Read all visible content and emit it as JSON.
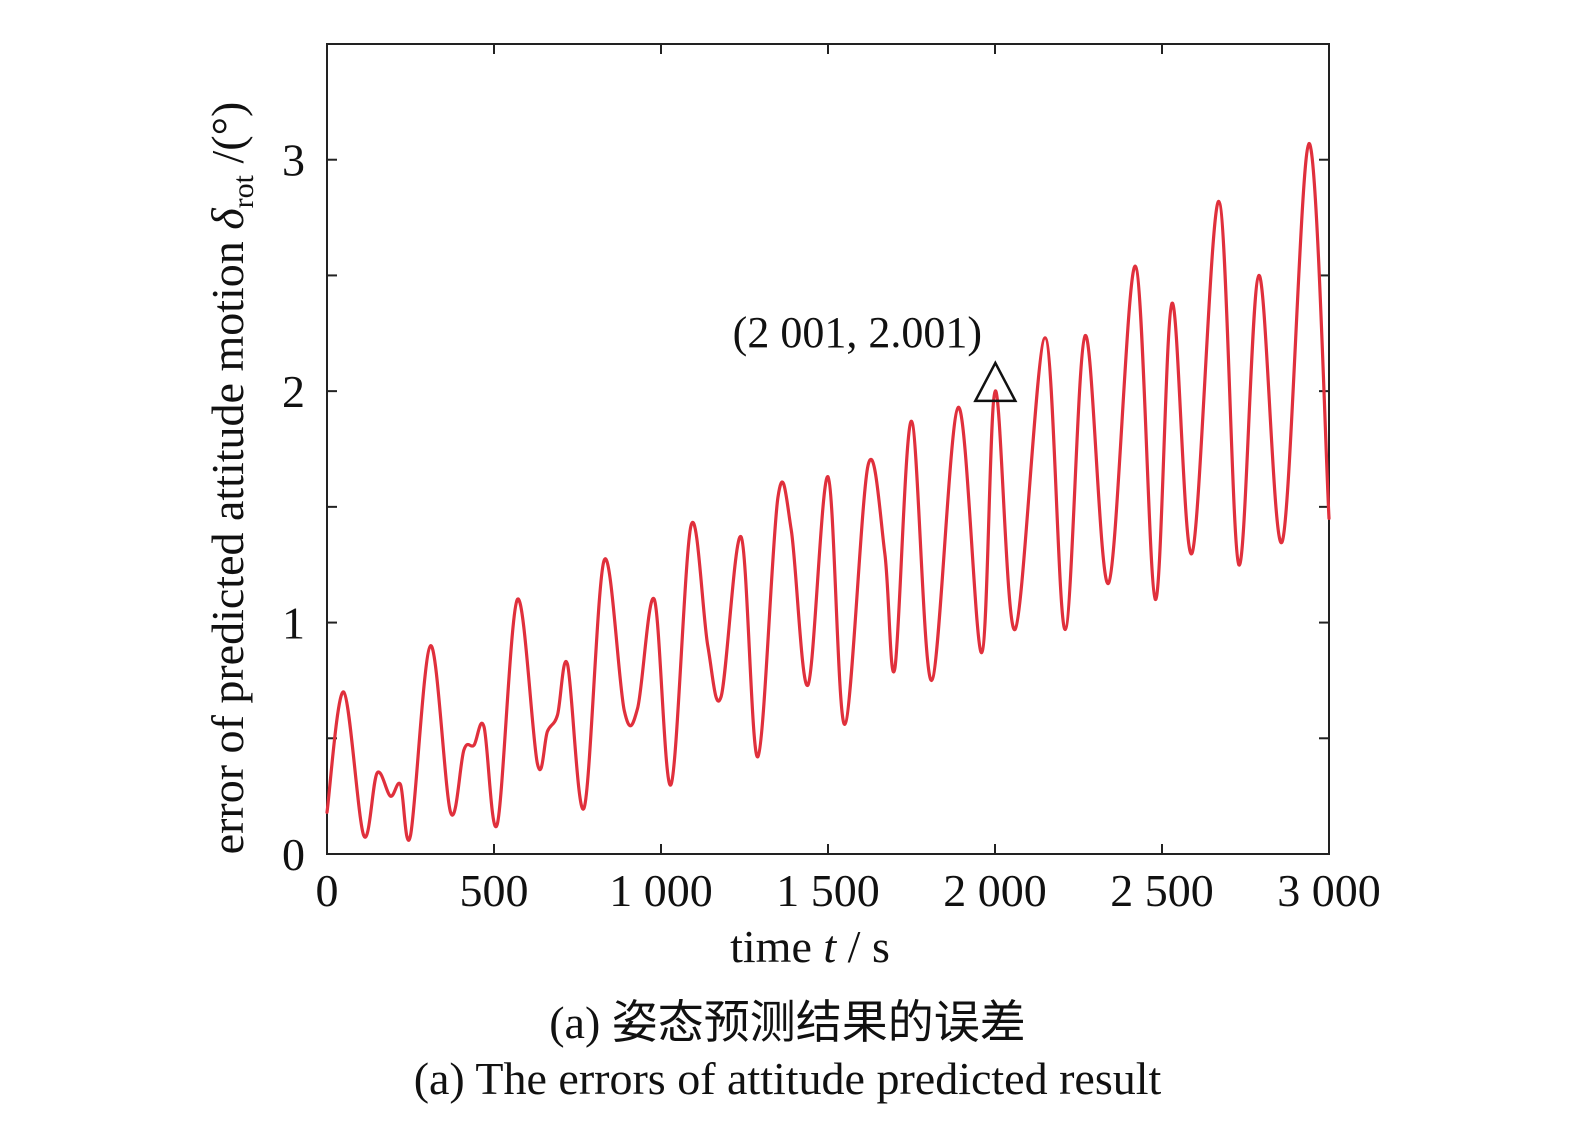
{
  "chart_data": {
    "type": "line",
    "xlabel_prefix": "time ",
    "xlabel_var": "t",
    "xlabel_suffix": " / s",
    "ylabel_prefix": "error of predicted attitude motion ",
    "ylabel_var": "δ",
    "ylabel_sub": "rot",
    "ylabel_suffix": " /(°)",
    "xlim": [
      0,
      3000
    ],
    "ylim": [
      0,
      3.5
    ],
    "xticks": [
      0,
      500,
      1000,
      1500,
      2000,
      2500,
      3000
    ],
    "xtick_labels": [
      "0",
      "500",
      "1 000",
      "1 500",
      "2 000",
      "2 500",
      "3 000"
    ],
    "yticks": [
      0,
      1,
      2,
      3
    ],
    "ytick_labels": [
      "0",
      "1",
      "2",
      "3"
    ],
    "grid": false,
    "series": [
      {
        "color": "#e0303c",
        "points": [
          [
            0,
            0.18
          ],
          [
            50,
            0.7
          ],
          [
            110,
            0.08
          ],
          [
            150,
            0.35
          ],
          [
            190,
            0.25
          ],
          [
            220,
            0.3
          ],
          [
            250,
            0.08
          ],
          [
            310,
            0.9
          ],
          [
            370,
            0.18
          ],
          [
            410,
            0.45
          ],
          [
            440,
            0.47
          ],
          [
            470,
            0.55
          ],
          [
            510,
            0.13
          ],
          [
            570,
            1.1
          ],
          [
            630,
            0.39
          ],
          [
            660,
            0.53
          ],
          [
            690,
            0.6
          ],
          [
            720,
            0.82
          ],
          [
            770,
            0.2
          ],
          [
            830,
            1.27
          ],
          [
            890,
            0.62
          ],
          [
            930,
            0.63
          ],
          [
            980,
            1.1
          ],
          [
            1030,
            0.3
          ],
          [
            1090,
            1.42
          ],
          [
            1140,
            0.9
          ],
          [
            1180,
            0.68
          ],
          [
            1240,
            1.37
          ],
          [
            1290,
            0.42
          ],
          [
            1350,
            1.54
          ],
          [
            1390,
            1.4
          ],
          [
            1440,
            0.73
          ],
          [
            1500,
            1.63
          ],
          [
            1550,
            0.56
          ],
          [
            1620,
            1.68
          ],
          [
            1670,
            1.3
          ],
          [
            1700,
            0.8
          ],
          [
            1750,
            1.87
          ],
          [
            1810,
            0.75
          ],
          [
            1890,
            1.93
          ],
          [
            1960,
            0.87
          ],
          [
            2001,
            2.001
          ],
          [
            2060,
            0.97
          ],
          [
            2150,
            2.23
          ],
          [
            2210,
            0.97
          ],
          [
            2270,
            2.24
          ],
          [
            2340,
            1.17
          ],
          [
            2420,
            2.54
          ],
          [
            2480,
            1.1
          ],
          [
            2530,
            2.38
          ],
          [
            2590,
            1.3
          ],
          [
            2670,
            2.82
          ],
          [
            2730,
            1.25
          ],
          [
            2790,
            2.5
          ],
          [
            2860,
            1.35
          ],
          [
            2940,
            3.07
          ],
          [
            3000,
            1.45
          ]
        ]
      }
    ],
    "annotation": {
      "x": 2001,
      "y": 2.001,
      "label": "(2 001, 2.001)",
      "marker": "triangle"
    }
  },
  "captions": {
    "cn": "(a) 姿态预测结果的误差",
    "en": "(a) The errors of attitude predicted result"
  }
}
